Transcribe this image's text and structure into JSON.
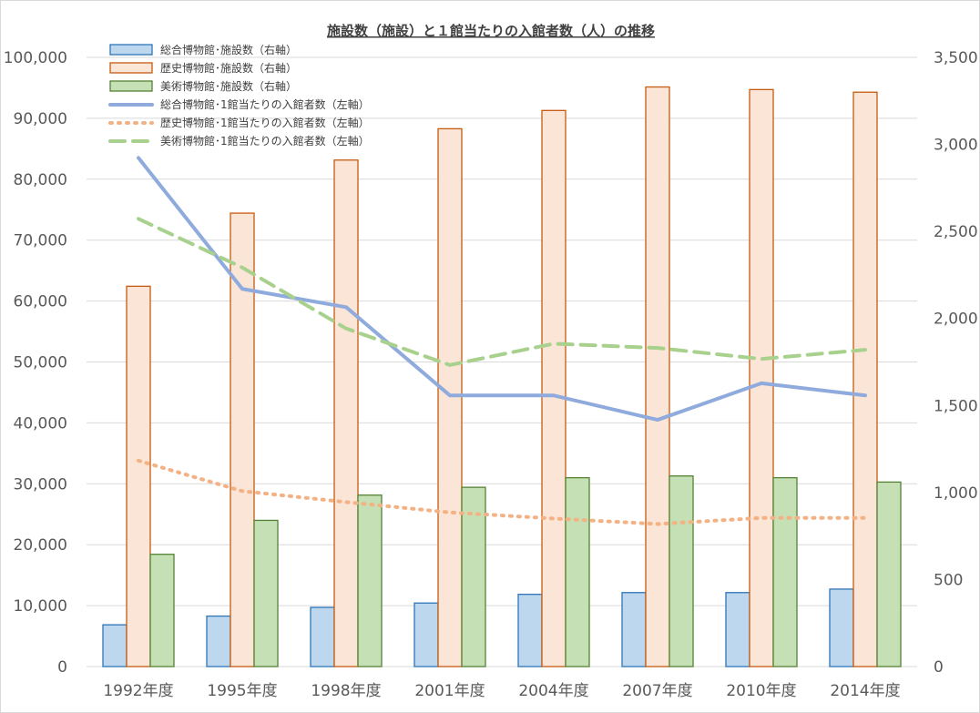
{
  "chart_data": {
    "type": "bar",
    "title": "施設数（施設）と１館当たりの入館者数（人）の推移",
    "categories": [
      "1992年度",
      "1995年度",
      "1998年度",
      "2001年度",
      "2004年度",
      "2007年度",
      "2010年度",
      "2014年度"
    ],
    "left_axis": {
      "min": 0,
      "max": 100000,
      "step": 10000,
      "tick_labels": [
        "0",
        "10,000",
        "20,000",
        "30,000",
        "40,000",
        "50,000",
        "60,000",
        "70,000",
        "80,000",
        "90,000",
        "100,000"
      ]
    },
    "right_axis": {
      "min": 0,
      "max": 3500,
      "step": 500,
      "tick_labels": [
        "0",
        "500",
        "1,000",
        "1,500",
        "2,000",
        "2,500",
        "3,000",
        "3,500"
      ]
    },
    "grid": true,
    "legend_position": "top-left",
    "series": [
      {
        "name": "総合博物館･施設数（右軸）",
        "kind": "bar",
        "axis": "right",
        "color": "#bdd7ee",
        "stroke": "#2e75b6",
        "values": [
          240,
          290,
          340,
          365,
          415,
          425,
          425,
          445
        ]
      },
      {
        "name": "歴史博物館･施設数（右軸）",
        "kind": "bar",
        "axis": "right",
        "color": "#fbe5d6",
        "stroke": "#c55a11",
        "values": [
          2185,
          2605,
          2910,
          3090,
          3195,
          3330,
          3315,
          3300
        ]
      },
      {
        "name": "美術博物館･施設数（右軸）",
        "kind": "bar",
        "axis": "right",
        "color": "#c5e0b4",
        "stroke": "#548235",
        "values": [
          645,
          840,
          985,
          1030,
          1085,
          1095,
          1085,
          1060
        ]
      },
      {
        "name": "総合博物館･1館当たりの入館者数（左軸）",
        "kind": "line",
        "axis": "left",
        "color": "#8faadc",
        "dash": "solid",
        "values": [
          83500,
          62000,
          59000,
          44500,
          44500,
          40500,
          46500,
          44500
        ]
      },
      {
        "name": "歴史博物館･1館当たりの入館者数（左軸）",
        "kind": "line",
        "axis": "left",
        "color": "#f4b183",
        "dash": "dot",
        "values": [
          33800,
          28800,
          27000,
          25300,
          24300,
          23400,
          24400,
          24400
        ]
      },
      {
        "name": "美術博物館･1館当たりの入館者数（左軸）",
        "kind": "line",
        "axis": "left",
        "color": "#a9d18e",
        "dash": "dash",
        "values": [
          73500,
          65500,
          55500,
          49500,
          53000,
          52300,
          50500,
          52000
        ]
      }
    ]
  }
}
